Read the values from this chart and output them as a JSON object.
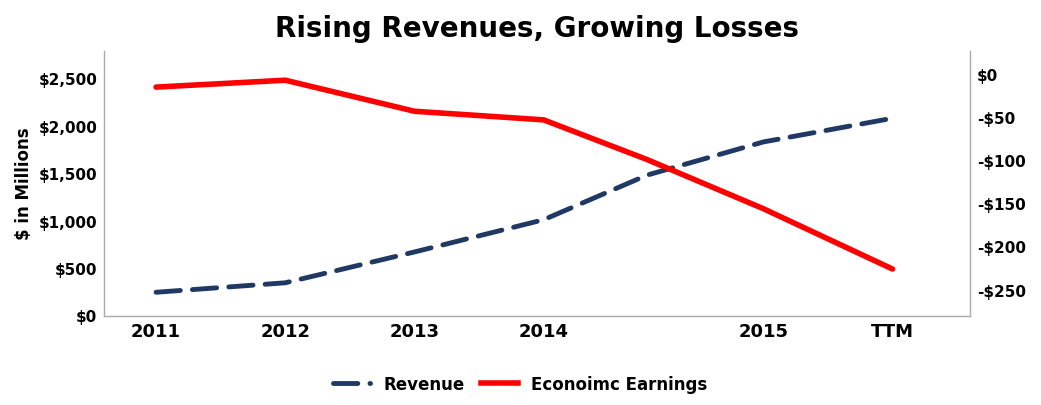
{
  "title": "Rising Revenues, Growing Losses",
  "title_fontsize": 20,
  "title_fontweight": "bold",
  "ylabel_left": "$ in Millions",
  "x_positions": [
    0,
    1,
    2,
    3,
    3.8,
    4.7,
    5.7
  ],
  "revenue": [
    255,
    355,
    680,
    1020,
    1490,
    1840,
    2090
  ],
  "econ_earnings": [
    -14,
    -6,
    -42,
    -52,
    -98,
    -155,
    -225
  ],
  "revenue_color": "#1F3864",
  "econ_color": "#FF0000",
  "left_ylim": [
    0,
    2800
  ],
  "right_ylim": [
    -280,
    28
  ],
  "left_yticks": [
    0,
    500,
    1000,
    1500,
    2000,
    2500
  ],
  "left_yticklabels": [
    "$0",
    "$500",
    "$1,000",
    "$1,500",
    "$2,000",
    "$2,500"
  ],
  "right_yticks": [
    0,
    -50,
    -100,
    -150,
    -200,
    -250
  ],
  "right_yticklabels": [
    "$0",
    "-$50",
    "-$100",
    "-$150",
    "-$200",
    "-$250"
  ],
  "x_tick_positions": [
    0,
    1,
    2,
    3,
    4.7,
    5.7
  ],
  "x_tick_labels": [
    "2011",
    "2012",
    "2013",
    "2014",
    "2015",
    "TTM"
  ],
  "legend_revenue": "Revenue",
  "legend_econ": "Econoimc Earnings",
  "bg_color": "#FFFFFF",
  "revenue_linewidth": 3.5,
  "econ_linewidth": 4.0,
  "figsize": [
    10.41,
    4.05
  ],
  "dpi": 100
}
